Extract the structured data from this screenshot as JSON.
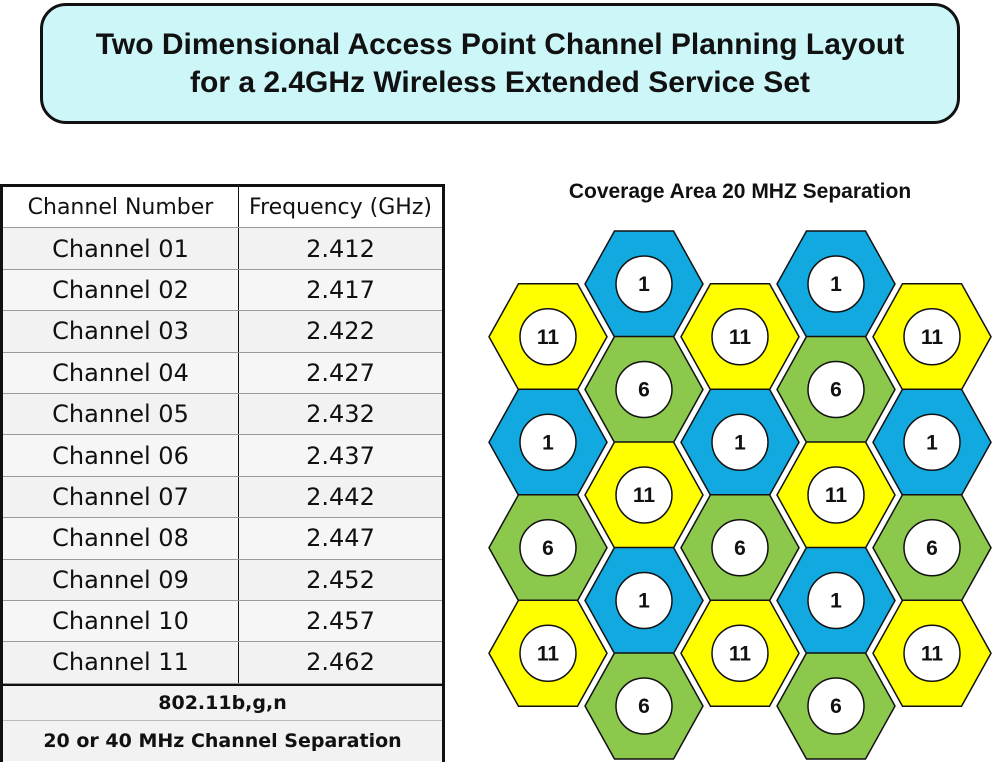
{
  "title": {
    "line1": "Two Dimensional Access Point Channel Planning Layout",
    "line2": "for a 2.4GHz Wireless Extended Service Set"
  },
  "table": {
    "headers": [
      "Channel Number",
      "Frequency (GHz)"
    ],
    "rows": [
      {
        "channel": "Channel 01",
        "freq": "2.412"
      },
      {
        "channel": "Channel 02",
        "freq": "2.417"
      },
      {
        "channel": "Channel 03",
        "freq": "2.422"
      },
      {
        "channel": "Channel 04",
        "freq": "2.427"
      },
      {
        "channel": "Channel 05",
        "freq": "2.432"
      },
      {
        "channel": "Channel 06",
        "freq": "2.437"
      },
      {
        "channel": "Channel 07",
        "freq": "2.442"
      },
      {
        "channel": "Channel 08",
        "freq": "2.447"
      },
      {
        "channel": "Channel 09",
        "freq": "2.452"
      },
      {
        "channel": "Channel 10",
        "freq": "2.457"
      },
      {
        "channel": "Channel 11",
        "freq": "2.462"
      }
    ],
    "footer1": "802.11b,g,n",
    "footer2": "20 or 40 MHz Channel Separation"
  },
  "diagram": {
    "title": "Coverage Area 20 MHZ Separation",
    "channel_colors": {
      "1": "#12a9e1",
      "6": "#8cc84b",
      "11": "#ffff00"
    },
    "grid_rows": [
      [
        "",
        "1",
        "",
        "1",
        ""
      ],
      [
        "11",
        "",
        "11",
        "",
        "11"
      ],
      [
        "",
        "6",
        "",
        "6",
        ""
      ],
      [
        "1",
        "",
        "1",
        "",
        "1"
      ],
      [
        "",
        "11",
        "",
        "11",
        ""
      ],
      [
        "6",
        "",
        "6",
        "",
        "6"
      ],
      [
        "",
        "1",
        "",
        "1",
        ""
      ],
      [
        "11",
        "",
        "11",
        "",
        "11"
      ],
      [
        "",
        "6",
        "",
        "6",
        ""
      ]
    ]
  }
}
